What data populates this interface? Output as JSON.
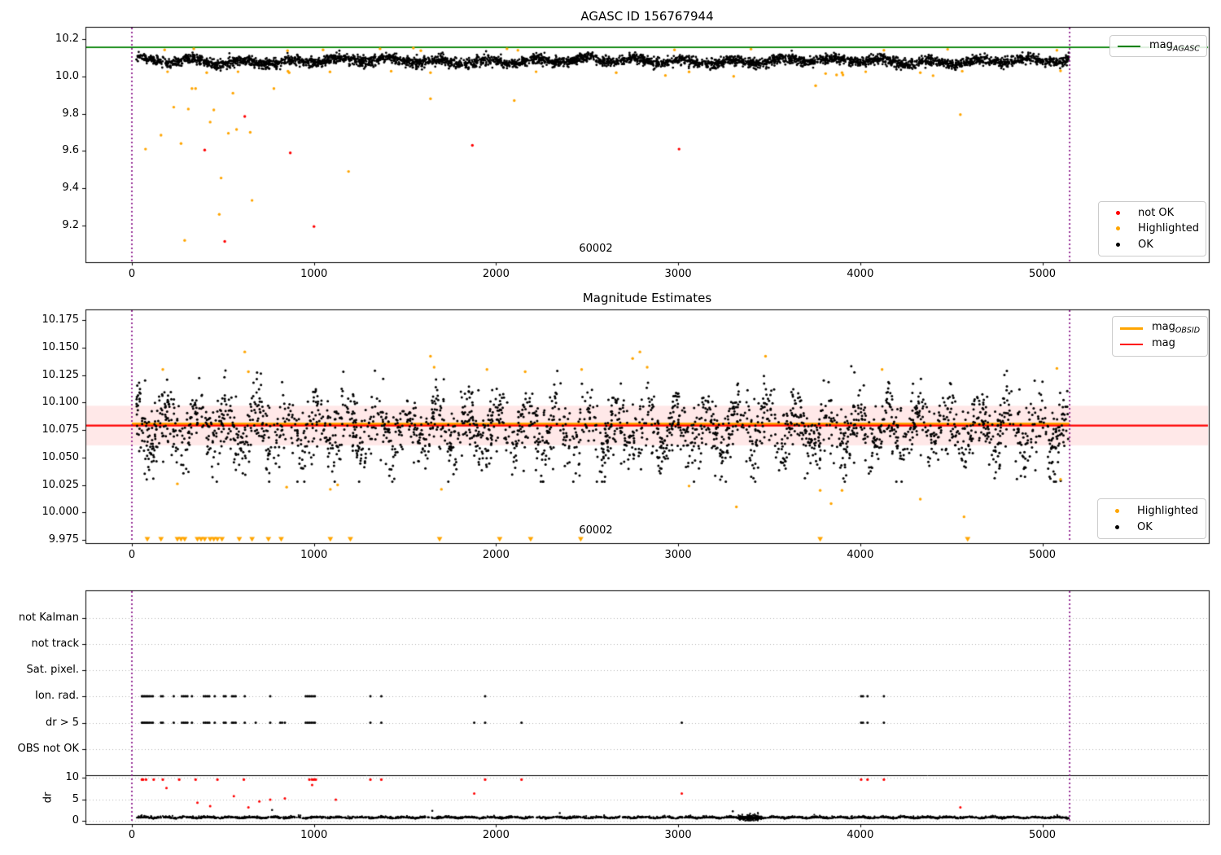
{
  "seed": 20240613,
  "colors": {
    "ok": "#000000",
    "not_ok": "#ff0000",
    "highlighted": "#ffa500",
    "mag_agasc": "#008000",
    "mag": "#ff0000",
    "mag_obsid": "#ffa500",
    "obsid_boundary": "#800080",
    "mag_band_fill": "rgba(255,0,0,0.09)",
    "grid": "#b5b5b5"
  },
  "chart_data": [
    {
      "type": "scatter",
      "title": "AGASC ID 156767944",
      "obsid_label": "60002",
      "xlim": [
        -255,
        5915
      ],
      "ylim": [
        9.0,
        10.266
      ],
      "x_ticks": [
        "0",
        "1000",
        "2000",
        "3000",
        "4000",
        "5000"
      ],
      "y_ticks": [
        "10.2",
        "10.0",
        "9.8",
        "9.6",
        "9.4",
        "9.2"
      ],
      "mag_agasc_line": 10.156,
      "obsid_boundaries": [
        0,
        5150
      ],
      "legend_line": {
        "items": [
          {
            "main": "mag",
            "sub": "AGASC"
          }
        ]
      },
      "legend_markers": {
        "items": [
          {
            "label": "not OK"
          },
          {
            "label": "Highlighted"
          },
          {
            "label": "OK"
          }
        ]
      },
      "ok_band": {
        "n": 3800,
        "x_range": [
          25,
          5145
        ],
        "mean": 10.082,
        "sigma": 0.0135,
        "clip": [
          10.025,
          10.148
        ],
        "wiggles": [
          {
            "amp": 0.012,
            "period": 270,
            "phase": 0
          },
          {
            "amp": 0.007,
            "period": 1263,
            "phase": 1.5
          }
        ]
      },
      "highlighted_points": [
        [
          75,
          9.61
        ],
        [
          160,
          9.685
        ],
        [
          230,
          9.835
        ],
        [
          270,
          9.64
        ],
        [
          290,
          9.12
        ],
        [
          310,
          9.825
        ],
        [
          330,
          9.935
        ],
        [
          350,
          9.935
        ],
        [
          430,
          9.755
        ],
        [
          450,
          9.82
        ],
        [
          480,
          9.26
        ],
        [
          490,
          9.455
        ],
        [
          530,
          9.695
        ],
        [
          555,
          9.91
        ],
        [
          575,
          9.715
        ],
        [
          650,
          9.7
        ],
        [
          660,
          9.335
        ],
        [
          780,
          9.935
        ],
        [
          1190,
          9.49
        ],
        [
          1640,
          9.88
        ],
        [
          2100,
          9.87
        ],
        [
          2930,
          10.005
        ],
        [
          3305,
          10.0
        ],
        [
          3755,
          9.95
        ],
        [
          3870,
          10.008
        ],
        [
          3905,
          10.008
        ],
        [
          4400,
          10.004
        ],
        [
          4550,
          9.795
        ],
        [
          180,
          10.142
        ],
        [
          340,
          10.148
        ],
        [
          855,
          10.138
        ],
        [
          1050,
          10.142
        ],
        [
          1363,
          10.148
        ],
        [
          1546,
          10.152
        ],
        [
          1587,
          10.138
        ],
        [
          2060,
          10.148
        ],
        [
          2120,
          10.14
        ],
        [
          2980,
          10.142
        ],
        [
          3400,
          10.146
        ],
        [
          4130,
          10.14
        ],
        [
          4480,
          10.145
        ],
        [
          5080,
          10.14
        ],
        [
          196,
          10.025
        ],
        [
          411,
          10.02
        ],
        [
          583,
          10.025
        ],
        [
          857,
          10.028
        ],
        [
          864,
          10.02
        ],
        [
          1088,
          10.024
        ],
        [
          1424,
          10.028
        ],
        [
          1640,
          10.02
        ],
        [
          2220,
          10.025
        ],
        [
          2660,
          10.02
        ],
        [
          3060,
          10.024
        ],
        [
          3810,
          10.015
        ],
        [
          3900,
          10.02
        ],
        [
          4030,
          10.025
        ],
        [
          4330,
          10.02
        ],
        [
          4560,
          10.028
        ],
        [
          5100,
          10.03
        ]
      ],
      "not_ok_points": [
        [
          400,
          9.605
        ],
        [
          510,
          9.115
        ],
        [
          620,
          9.785
        ],
        [
          870,
          9.59
        ],
        [
          1000,
          9.195
        ],
        [
          1870,
          9.63
        ],
        [
          3005,
          9.61
        ]
      ]
    },
    {
      "type": "scatter",
      "title": "Magnitude Estimates",
      "obsid_label": "60002",
      "xlim": [
        -255,
        5915
      ],
      "ylim": [
        9.9698,
        10.1861
      ],
      "x_ticks": [
        "0",
        "1000",
        "2000",
        "3000",
        "4000",
        "5000"
      ],
      "y_ticks": [
        "10.175",
        "10.150",
        "10.125",
        "10.100",
        "10.075",
        "10.050",
        "10.025",
        "10.000",
        "9.975"
      ],
      "mag_line": 10.079,
      "mag_obsid_line": 10.0805,
      "mag_band": [
        10.061,
        10.097
      ],
      "obsid_boundaries": [
        0,
        5150
      ],
      "legend_line": {
        "items": [
          {
            "main": "mag",
            "sub": "OBSID"
          },
          {
            "main": "mag",
            "sub": ""
          }
        ]
      },
      "legend_markers": {
        "items": [
          {
            "label": "Highlighted"
          },
          {
            "label": "OK"
          }
        ]
      },
      "ok_band": {
        "n": 2600,
        "x_range": [
          25,
          5145
        ],
        "mean": 10.077,
        "sigma": 0.0145,
        "clip": [
          10.028,
          10.133
        ],
        "tail": 0.08,
        "wiggles": [
          {
            "amp": 0.016,
            "period": 165,
            "phase": 0.5
          }
        ]
      },
      "highlighted_points": [
        [
          170,
          10.13
        ],
        [
          250,
          10.026
        ],
        [
          620,
          10.146
        ],
        [
          640,
          10.128
        ],
        [
          850,
          10.023
        ],
        [
          1090,
          10.021
        ],
        [
          1130,
          10.025
        ],
        [
          1640,
          10.142
        ],
        [
          1660,
          10.132
        ],
        [
          1700,
          10.021
        ],
        [
          1950,
          10.13
        ],
        [
          2160,
          10.128
        ],
        [
          2470,
          10.13
        ],
        [
          2750,
          10.14
        ],
        [
          2790,
          10.146
        ],
        [
          2830,
          10.132
        ],
        [
          3060,
          10.024
        ],
        [
          3320,
          10.005
        ],
        [
          3480,
          10.142
        ],
        [
          3780,
          10.02
        ],
        [
          3840,
          10.008
        ],
        [
          3900,
          10.02
        ],
        [
          4120,
          10.13
        ],
        [
          4330,
          10.012
        ],
        [
          4570,
          9.996
        ],
        [
          5080,
          10.131
        ],
        [
          5100,
          10.03
        ]
      ],
      "clipped_low_x": [
        85,
        160,
        250,
        270,
        290,
        360,
        380,
        400,
        430,
        450,
        470,
        495,
        590,
        660,
        750,
        820,
        1090,
        1200,
        1690,
        2020,
        2190,
        2465,
        3780,
        4590
      ],
      "clip_y": 9.9755
    },
    {
      "type": "scatter-flags",
      "ylabel": "dr",
      "flag_rows": [
        "not Kalman",
        "not track",
        "Sat. pixel.",
        "Ion. rad.",
        "dr > 5",
        "OBS not OK"
      ],
      "dr_ticks": [
        "10",
        "5",
        "0"
      ],
      "x_ticks": [
        "0",
        "1000",
        "2000",
        "3000",
        "4000",
        "5000"
      ],
      "obsid_boundaries": [
        0,
        5150
      ],
      "dr_clip_y": 9.55,
      "ion_rad_x": [
        55,
        62,
        70,
        78,
        86,
        95,
        105,
        115,
        160,
        170,
        230,
        275,
        285,
        295,
        305,
        330,
        395,
        405,
        415,
        425,
        455,
        505,
        515,
        550,
        560,
        570,
        620,
        760,
        955,
        965,
        975,
        985,
        995,
        1005,
        1310,
        1370,
        1940,
        4005,
        4015,
        4040,
        4130
      ],
      "dr_gt5_x": [
        55,
        62,
        70,
        78,
        86,
        95,
        105,
        115,
        160,
        170,
        230,
        275,
        285,
        295,
        305,
        330,
        395,
        405,
        415,
        425,
        455,
        505,
        515,
        550,
        560,
        570,
        620,
        680,
        760,
        815,
        825,
        840,
        955,
        965,
        975,
        985,
        995,
        1005,
        1310,
        1370,
        1880,
        1940,
        2140,
        3020,
        4005,
        4015,
        4040,
        4130
      ],
      "dr_clipped_x": [
        55,
        62,
        78,
        120,
        170,
        260,
        350,
        470,
        615,
        975,
        990,
        1000,
        1010,
        1310,
        1370,
        1940,
        2140,
        4005,
        4040,
        4130
      ],
      "dr_red_points": [
        [
          190,
          7.6
        ],
        [
          360,
          4.2
        ],
        [
          430,
          3.4
        ],
        [
          560,
          5.7
        ],
        [
          640,
          3.1
        ],
        [
          700,
          4.5
        ],
        [
          760,
          4.9
        ],
        [
          840,
          5.2
        ],
        [
          990,
          8.3
        ],
        [
          1120,
          4.9
        ],
        [
          1880,
          6.3
        ],
        [
          3020,
          6.3
        ],
        [
          4550,
          3.1
        ]
      ],
      "dr_black_outliers": [
        [
          770,
          2.5
        ],
        [
          1650,
          2.3
        ],
        [
          2350,
          1.8
        ],
        [
          3300,
          2.2
        ]
      ],
      "dr_noise": {
        "n": 2900,
        "x_range": [
          25,
          5145
        ],
        "mean": 0.45,
        "sigma": 0.18,
        "clip": [
          0.02,
          2.2
        ],
        "abs": true,
        "wiggles": [
          {
            "amp": 0.28,
            "period": 239,
            "phase": 0
          }
        ]
      },
      "dr_noise_bump": {
        "n": 130,
        "x_range": [
          3330,
          3460
        ],
        "mean": 0.75,
        "sigma": 0.45,
        "clip": [
          0.05,
          2.4
        ]
      }
    }
  ]
}
